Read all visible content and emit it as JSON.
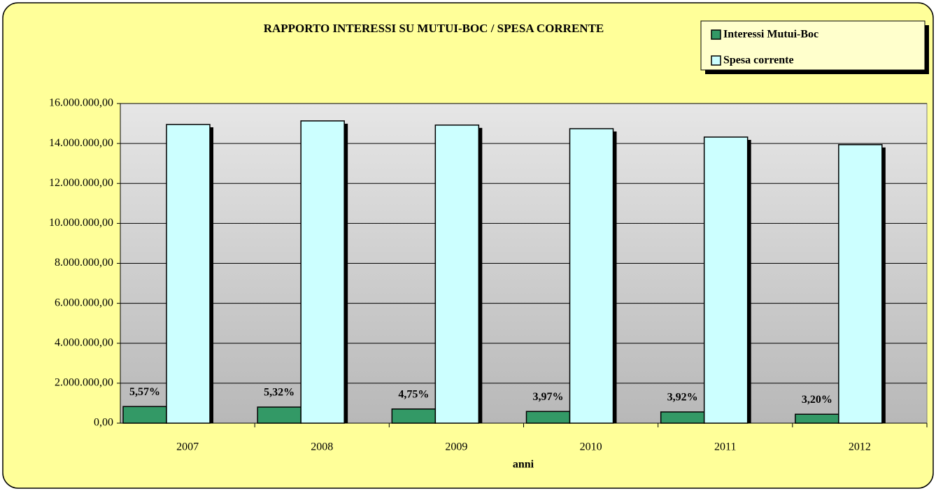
{
  "chart_data": {
    "type": "bar",
    "title": "RAPPORTO INTERESSI SU MUTUI-BOC / SPESA CORRENTE",
    "x_label": "anni",
    "categories": [
      "2007",
      "2008",
      "2009",
      "2010",
      "2011",
      "2012"
    ],
    "series": [
      {
        "name": "Interessi Mutui-Boc",
        "color": "#339966",
        "values": [
          833000,
          805000,
          709000,
          585000,
          561000,
          446000
        ]
      },
      {
        "name": "Spesa corrente",
        "color": "#ccffff",
        "values": [
          14950000,
          15130000,
          14920000,
          14740000,
          14320000,
          13940000
        ]
      }
    ],
    "annotations": [
      "5,57%",
      "5,32%",
      "4,75%",
      "3,97%",
      "3,92%",
      "3,20%"
    ],
    "ylim": [
      0,
      16000000
    ],
    "yticks": [
      {
        "value": 0,
        "label": "0,00"
      },
      {
        "value": 2000000,
        "label": "2.000.000,00"
      },
      {
        "value": 4000000,
        "label": "4.000.000,00"
      },
      {
        "value": 6000000,
        "label": "6.000.000,00"
      },
      {
        "value": 8000000,
        "label": "8.000.000,00"
      },
      {
        "value": 10000000,
        "label": "10.000.000,00"
      },
      {
        "value": 12000000,
        "label": "12.000.000,00"
      },
      {
        "value": 14000000,
        "label": "14.000.000,00"
      },
      {
        "value": 16000000,
        "label": "16.000.000,00"
      }
    ],
    "grid": true,
    "legend": "top-right"
  }
}
